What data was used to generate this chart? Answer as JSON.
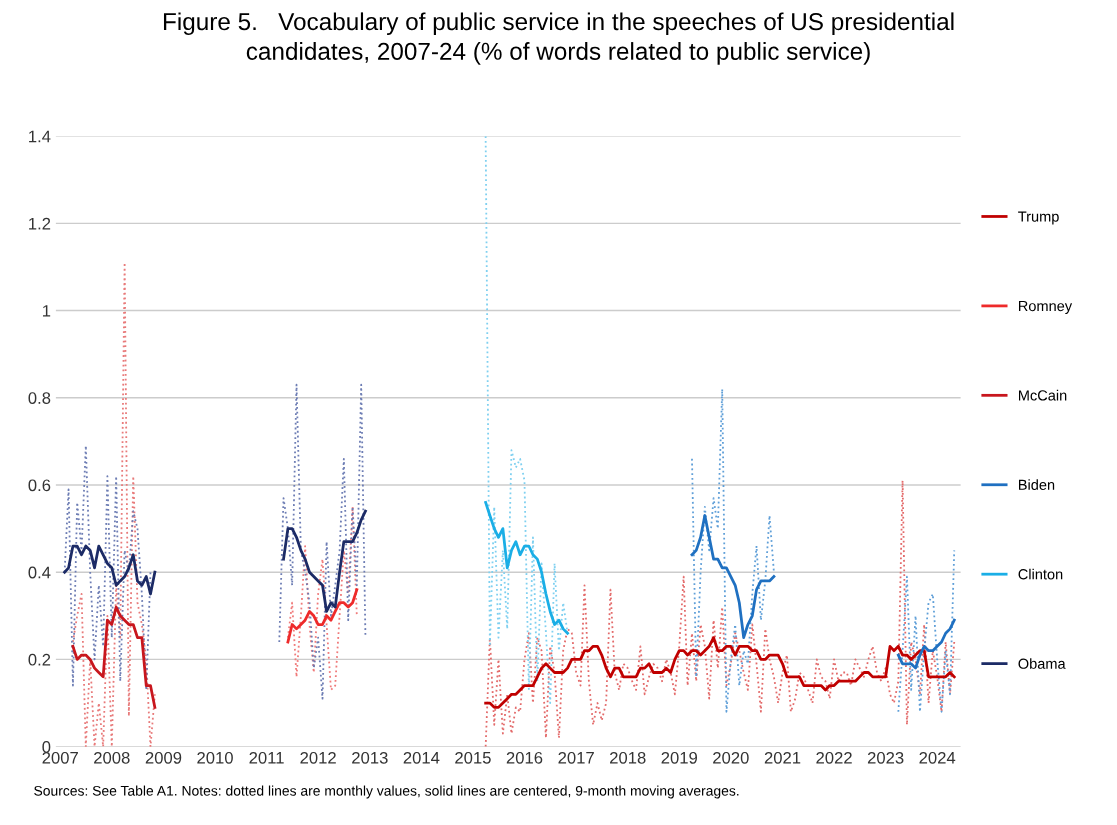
{
  "chart_data": {
    "type": "line",
    "title": "Figure 5.   Vocabulary of public service in the speeches of US presidential\ncandidates, 2007-24 (% of words related to public service)",
    "annotations": [
      "Sources: See Table A1. Notes: dotted lines are monthly values, solid lines are centered, 9-month moving averages."
    ],
    "xlim": [
      "2006-12-01",
      "2024-06-15"
    ],
    "xticks": [
      "2007",
      "2008",
      "2009",
      "2010",
      "2011",
      "2012",
      "2013",
      "2014",
      "2015",
      "2016",
      "2017",
      "2018",
      "2019",
      "2020",
      "2021",
      "2022",
      "2023",
      "2024"
    ],
    "ylim": [
      0,
      1.4
    ],
    "yticks": [
      0,
      0.2,
      0.4,
      0.6,
      0.8,
      1,
      1.2,
      1.4
    ],
    "grid": "y",
    "legend": "right",
    "series": [
      {
        "name": "Trump",
        "color": "#c00000",
        "line_style": "solid",
        "x": [
          "2015-04",
          "2015-05",
          "2015-06",
          "2015-07",
          "2015-08",
          "2015-09",
          "2015-10",
          "2015-11",
          "2015-12",
          "2016-01",
          "2016-02",
          "2016-03",
          "2016-04",
          "2016-05",
          "2016-06",
          "2016-07",
          "2016-08",
          "2016-09",
          "2016-10",
          "2016-11",
          "2016-12",
          "2017-01",
          "2017-02",
          "2017-03",
          "2017-04",
          "2017-05",
          "2017-06",
          "2017-07",
          "2017-08",
          "2017-09",
          "2017-10",
          "2017-11",
          "2017-12",
          "2018-01",
          "2018-02",
          "2018-03",
          "2018-04",
          "2018-05",
          "2018-06",
          "2018-07",
          "2018-08",
          "2018-09",
          "2018-10",
          "2018-11",
          "2018-12",
          "2019-01",
          "2019-02",
          "2019-03",
          "2019-04",
          "2019-05",
          "2019-06",
          "2019-07",
          "2019-08",
          "2019-09",
          "2019-10",
          "2019-11",
          "2019-12",
          "2020-01",
          "2020-02",
          "2020-03",
          "2020-04",
          "2020-05",
          "2020-06",
          "2020-07",
          "2020-08",
          "2020-09",
          "2020-10",
          "2020-11",
          "2020-12",
          "2021-01",
          "2021-02",
          "2021-03",
          "2021-04",
          "2021-05",
          "2021-06",
          "2021-07",
          "2021-08",
          "2021-09",
          "2021-10",
          "2021-11",
          "2021-12",
          "2022-01",
          "2022-02",
          "2022-03",
          "2022-04",
          "2022-05",
          "2022-06",
          "2022-07",
          "2022-08",
          "2022-09",
          "2022-10",
          "2022-11",
          "2022-12",
          "2023-01",
          "2023-02",
          "2023-03",
          "2023-04",
          "2023-05",
          "2023-06",
          "2023-07",
          "2023-08",
          "2023-09",
          "2023-10",
          "2023-11",
          "2023-12",
          "2024-01",
          "2024-02",
          "2024-03",
          "2024-04",
          "2024-05"
        ],
        "values": [
          0.1,
          0.1,
          0.09,
          0.09,
          0.1,
          0.11,
          0.12,
          0.12,
          0.13,
          0.14,
          0.14,
          0.14,
          0.16,
          0.18,
          0.19,
          0.18,
          0.17,
          0.17,
          0.17,
          0.18,
          0.2,
          0.2,
          0.2,
          0.22,
          0.22,
          0.23,
          0.23,
          0.21,
          0.18,
          0.16,
          0.18,
          0.18,
          0.16,
          0.16,
          0.16,
          0.16,
          0.18,
          0.18,
          0.19,
          0.17,
          0.17,
          0.17,
          0.18,
          0.17,
          0.2,
          0.22,
          0.22,
          0.21,
          0.22,
          0.22,
          0.21,
          0.22,
          0.23,
          0.25,
          0.22,
          0.22,
          0.23,
          0.23,
          0.21,
          0.23,
          0.23,
          0.23,
          0.22,
          0.22,
          0.2,
          0.2,
          0.21,
          0.21,
          0.21,
          0.19,
          0.16,
          0.16,
          0.16,
          0.16,
          0.14,
          0.14,
          0.14,
          0.14,
          0.14,
          0.13,
          0.14,
          0.14,
          0.15,
          0.15,
          0.15,
          0.15,
          0.15,
          0.16,
          0.17,
          0.17,
          0.16,
          0.16,
          0.16,
          0.16,
          0.23,
          0.22,
          0.23,
          0.21,
          0.21,
          0.2,
          0.21,
          0.22,
          0.22,
          0.16,
          0.16,
          0.16,
          0.16,
          0.16,
          0.17,
          0.16
        ]
      },
      {
        "name": "Romney",
        "color": "#ee2a2a",
        "line_style": "solid",
        "x": [
          "2011-06",
          "2011-07",
          "2011-08",
          "2011-09",
          "2011-10",
          "2011-11",
          "2011-12",
          "2012-01",
          "2012-02",
          "2012-03",
          "2012-04",
          "2012-05",
          "2012-06",
          "2012-07",
          "2012-08",
          "2012-09",
          "2012-10"
        ],
        "values": [
          0.24,
          0.28,
          0.27,
          0.28,
          0.29,
          0.31,
          0.3,
          0.28,
          0.28,
          0.3,
          0.29,
          0.31,
          0.33,
          0.33,
          0.32,
          0.33,
          0.36
        ]
      },
      {
        "name": "McCain",
        "color": "#c8161d",
        "line_style": "solid",
        "x": [
          "2007-04",
          "2007-05",
          "2007-06",
          "2007-07",
          "2007-08",
          "2007-09",
          "2007-10",
          "2007-11",
          "2007-12",
          "2008-01",
          "2008-02",
          "2008-03",
          "2008-04",
          "2008-05",
          "2008-06",
          "2008-07",
          "2008-08",
          "2008-09",
          "2008-10",
          "2008-11"
        ],
        "values": [
          0.23,
          0.2,
          0.21,
          0.21,
          0.2,
          0.18,
          0.17,
          0.16,
          0.29,
          0.28,
          0.32,
          0.3,
          0.29,
          0.28,
          0.28,
          0.25,
          0.25,
          0.14,
          0.14,
          0.09
        ]
      },
      {
        "name": "Biden",
        "color": "#1f70c1",
        "line_style": "solid",
        "x": [
          "2019-04",
          "2019-05",
          "2019-06",
          "2019-07",
          "2019-08",
          "2019-09",
          "2019-10",
          "2019-11",
          "2019-12",
          "2020-01",
          "2020-02",
          "2020-03",
          "2020-04",
          "2020-05",
          "2020-06",
          "2020-07",
          "2020-08",
          "2020-09",
          "2020-10",
          "2020-11"
        ],
        "values": [
          0.44,
          0.45,
          0.48,
          0.53,
          0.48,
          0.43,
          0.43,
          0.41,
          0.41,
          0.39,
          0.37,
          0.33,
          0.25,
          0.28,
          0.3,
          0.36,
          0.38,
          0.38,
          0.38,
          0.39
        ]
      },
      {
        "color": "#1f70c1",
        "line_style": "solid",
        "x": [
          "2023-04",
          "2023-05",
          "2023-06",
          "2023-07",
          "2023-08",
          "2023-09",
          "2023-10",
          "2023-11",
          "2023-12",
          "2024-01",
          "2024-02",
          "2024-03",
          "2024-04",
          "2024-05"
        ],
        "values": [
          0.21,
          0.19,
          0.19,
          0.19,
          0.18,
          0.21,
          0.23,
          0.22,
          0.22,
          0.23,
          0.24,
          0.26,
          0.27,
          0.29
        ]
      },
      {
        "name": "Clinton",
        "color": "#1aaee6",
        "line_style": "solid",
        "x": [
          "2015-04",
          "2015-05",
          "2015-06",
          "2015-07",
          "2015-08",
          "2015-09",
          "2015-10",
          "2015-11",
          "2015-12",
          "2016-01",
          "2016-02",
          "2016-03",
          "2016-04",
          "2016-05",
          "2016-06",
          "2016-07",
          "2016-08",
          "2016-09",
          "2016-10",
          "2016-11"
        ],
        "values": [
          0.56,
          0.53,
          0.5,
          0.48,
          0.5,
          0.41,
          0.45,
          0.47,
          0.44,
          0.46,
          0.46,
          0.44,
          0.43,
          0.4,
          0.35,
          0.31,
          0.28,
          0.29,
          0.27,
          0.26
        ]
      },
      {
        "name": "Obama",
        "color": "#1c2b66",
        "line_style": "solid",
        "x": [
          "2007-02",
          "2007-03",
          "2007-04",
          "2007-05",
          "2007-06",
          "2007-07",
          "2007-08",
          "2007-09",
          "2007-10",
          "2007-11",
          "2007-12",
          "2008-01",
          "2008-02",
          "2008-03",
          "2008-04",
          "2008-05",
          "2008-06",
          "2008-07",
          "2008-08",
          "2008-09",
          "2008-10",
          "2008-11"
        ],
        "values": [
          0.4,
          0.41,
          0.46,
          0.46,
          0.44,
          0.46,
          0.45,
          0.41,
          0.46,
          0.44,
          0.42,
          0.41,
          0.37,
          0.38,
          0.39,
          0.41,
          0.44,
          0.38,
          0.37,
          0.39,
          0.35,
          0.4
        ]
      },
      {
        "color": "#1c2b66",
        "line_style": "solid",
        "x": [
          "2011-05",
          "2011-06",
          "2011-07",
          "2011-08",
          "2011-09",
          "2011-10",
          "2011-11",
          "2011-12",
          "2012-01",
          "2012-02",
          "2012-03",
          "2012-04",
          "2012-05",
          "2012-06",
          "2012-07",
          "2012-08",
          "2012-09",
          "2012-10",
          "2012-11",
          "2012-12"
        ],
        "values": [
          0.43,
          0.5,
          0.5,
          0.48,
          0.45,
          0.43,
          0.4,
          0.39,
          0.38,
          0.37,
          0.31,
          0.33,
          0.32,
          0.4,
          0.47,
          0.47,
          0.47,
          0.49,
          0.52,
          0.54
        ]
      },
      {
        "color": "#e36a6a",
        "line_style": "dotted",
        "x": [
          "2015-04",
          "2015-05",
          "2015-06",
          "2015-07",
          "2015-08",
          "2015-09",
          "2015-10",
          "2015-11",
          "2015-12",
          "2016-01",
          "2016-02",
          "2016-03",
          "2016-04",
          "2016-05",
          "2016-06",
          "2016-07",
          "2016-08",
          "2016-09",
          "2016-10",
          "2016-11",
          "2016-12",
          "2017-01",
          "2017-02",
          "2017-03",
          "2017-04",
          "2017-05",
          "2017-06",
          "2017-07",
          "2017-08",
          "2017-09",
          "2017-10",
          "2017-11",
          "2017-12",
          "2018-01",
          "2018-02",
          "2018-03",
          "2018-04",
          "2018-05",
          "2018-06",
          "2018-07",
          "2018-08",
          "2018-09",
          "2018-10",
          "2018-11",
          "2018-12",
          "2019-01",
          "2019-02",
          "2019-03",
          "2019-04",
          "2019-05",
          "2019-06",
          "2019-07",
          "2019-08",
          "2019-09",
          "2019-10",
          "2019-11",
          "2019-12",
          "2020-01",
          "2020-02",
          "2020-03",
          "2020-04",
          "2020-05",
          "2020-06",
          "2020-07",
          "2020-08",
          "2020-09",
          "2020-10",
          "2020-11",
          "2020-12",
          "2021-01",
          "2021-02",
          "2021-03",
          "2021-04",
          "2021-05",
          "2021-06",
          "2021-07",
          "2021-08",
          "2021-09",
          "2021-10",
          "2021-11",
          "2021-12",
          "2022-01",
          "2022-02",
          "2022-03",
          "2022-04",
          "2022-05",
          "2022-06",
          "2022-07",
          "2022-08",
          "2022-09",
          "2022-10",
          "2022-11",
          "2022-12",
          "2023-01",
          "2023-02",
          "2023-03",
          "2023-04",
          "2023-05",
          "2023-06",
          "2023-07",
          "2023-08",
          "2023-09",
          "2023-10",
          "2023-11",
          "2023-12",
          "2024-01",
          "2024-02",
          "2024-03",
          "2024-04",
          "2024-05"
        ],
        "values": [
          0.0,
          0.25,
          0.05,
          0.2,
          0.03,
          0.12,
          0.03,
          0.09,
          0.08,
          0.2,
          0.26,
          0.1,
          0.25,
          0.22,
          0.02,
          0.23,
          0.17,
          0.02,
          0.22,
          0.27,
          0.26,
          0.17,
          0.14,
          0.37,
          0.15,
          0.05,
          0.1,
          0.06,
          0.1,
          0.36,
          0.17,
          0.13,
          0.19,
          0.18,
          0.15,
          0.13,
          0.23,
          0.12,
          0.16,
          0.19,
          0.18,
          0.15,
          0.2,
          0.17,
          0.12,
          0.23,
          0.39,
          0.14,
          0.26,
          0.15,
          0.28,
          0.23,
          0.11,
          0.29,
          0.18,
          0.32,
          0.14,
          0.19,
          0.26,
          0.22,
          0.17,
          0.13,
          0.28,
          0.19,
          0.08,
          0.27,
          0.2,
          0.16,
          0.1,
          0.17,
          0.21,
          0.08,
          0.11,
          0.17,
          0.16,
          0.13,
          0.1,
          0.2,
          0.16,
          0.15,
          0.11,
          0.2,
          0.15,
          0.17,
          0.17,
          0.14,
          0.2,
          0.18,
          0.16,
          0.2,
          0.23,
          0.17,
          0.15,
          0.18,
          0.12,
          0.1,
          0.15,
          0.61,
          0.05,
          0.24,
          0.2,
          0.12,
          0.28,
          0.1,
          0.22,
          0.16,
          0.08,
          0.24,
          0.12,
          0.24
        ]
      },
      {
        "color": "#f07a7a",
        "line_style": "dotted",
        "x": [
          "2011-06",
          "2011-07",
          "2011-08",
          "2011-09",
          "2011-10",
          "2011-11",
          "2011-12",
          "2012-01",
          "2012-02",
          "2012-03",
          "2012-04",
          "2012-05",
          "2012-06",
          "2012-07",
          "2012-08",
          "2012-09",
          "2012-10"
        ],
        "values": [
          0.25,
          0.33,
          0.16,
          0.3,
          0.46,
          0.28,
          0.17,
          0.35,
          0.43,
          0.28,
          0.13,
          0.14,
          0.3,
          0.45,
          0.35,
          0.55,
          0.3
        ]
      },
      {
        "color": "#e87a7a",
        "line_style": "dotted",
        "x": [
          "2007-04",
          "2007-05",
          "2007-06",
          "2007-07",
          "2007-08",
          "2007-09",
          "2007-10",
          "2007-11",
          "2007-12",
          "2008-01",
          "2008-02",
          "2008-03",
          "2008-04",
          "2008-05",
          "2008-06",
          "2008-07",
          "2008-08",
          "2008-09",
          "2008-10",
          "2008-11"
        ],
        "values": [
          0.24,
          0.3,
          0.35,
          0.0,
          0.2,
          0.0,
          0.1,
          0.0,
          0.3,
          0.0,
          0.37,
          0.25,
          1.11,
          0.07,
          0.62,
          0.33,
          0.28,
          0.2,
          0.0,
          0.12
        ]
      },
      {
        "color": "#5f9fd8",
        "line_style": "dotted",
        "x": [
          "2019-04",
          "2019-05",
          "2019-06",
          "2019-07",
          "2019-08",
          "2019-09",
          "2019-10",
          "2019-11",
          "2019-12",
          "2020-01",
          "2020-02",
          "2020-03",
          "2020-04",
          "2020-05",
          "2020-06",
          "2020-07",
          "2020-08",
          "2020-09",
          "2020-10",
          "2020-11"
        ],
        "values": [
          0.66,
          0.16,
          0.4,
          0.55,
          0.45,
          0.57,
          0.5,
          0.82,
          0.08,
          0.2,
          0.28,
          0.14,
          0.22,
          0.19,
          0.35,
          0.46,
          0.29,
          0.38,
          0.53,
          0.4
        ]
      },
      {
        "color": "#5f9fd8",
        "line_style": "dotted",
        "x": [
          "2023-04",
          "2023-05",
          "2023-06",
          "2023-07",
          "2023-08",
          "2023-09",
          "2023-10",
          "2023-11",
          "2023-12",
          "2024-01",
          "2024-02",
          "2024-03",
          "2024-04",
          "2024-05"
        ],
        "values": [
          0.08,
          0.22,
          0.39,
          0.13,
          0.3,
          0.08,
          0.22,
          0.33,
          0.35,
          0.2,
          0.08,
          0.22,
          0.12,
          0.45
        ]
      },
      {
        "color": "#7fd0f0",
        "line_style": "dotted",
        "x": [
          "2015-04",
          "2015-05",
          "2015-06",
          "2015-07",
          "2015-08",
          "2015-09",
          "2015-10",
          "2015-11",
          "2015-12",
          "2016-01",
          "2016-02",
          "2016-03",
          "2016-04",
          "2016-05",
          "2016-06",
          "2016-07",
          "2016-08",
          "2016-09",
          "2016-10",
          "2016-11"
        ],
        "values": [
          1.4,
          0.23,
          0.55,
          0.25,
          0.45,
          0.27,
          0.68,
          0.64,
          0.66,
          0.61,
          0.13,
          0.48,
          0.15,
          0.42,
          0.26,
          0.1,
          0.42,
          0.22,
          0.33,
          0.26
        ]
      },
      {
        "color": "#6d7db4",
        "line_style": "dotted",
        "x": [
          "2007-02",
          "2007-03",
          "2007-04",
          "2007-05",
          "2007-06",
          "2007-07",
          "2007-08",
          "2007-09",
          "2007-10",
          "2007-11",
          "2007-12",
          "2008-01",
          "2008-02",
          "2008-03",
          "2008-04",
          "2008-05",
          "2008-06",
          "2008-07",
          "2008-08",
          "2008-09",
          "2008-10"
        ],
        "values": [
          0.4,
          0.59,
          0.14,
          0.56,
          0.45,
          0.69,
          0.4,
          0.2,
          0.37,
          0.23,
          0.62,
          0.25,
          0.62,
          0.15,
          0.45,
          0.4,
          0.54,
          0.5,
          0.35,
          0.13,
          0.4
        ]
      },
      {
        "color": "#6d7db4",
        "line_style": "dotted",
        "x": [
          "2011-04",
          "2011-05",
          "2011-06",
          "2011-07",
          "2011-08",
          "2011-09",
          "2011-10",
          "2011-11",
          "2011-12",
          "2012-01",
          "2012-02",
          "2012-03",
          "2012-04",
          "2012-05",
          "2012-06",
          "2012-07",
          "2012-08",
          "2012-09",
          "2012-10",
          "2012-11",
          "2012-12"
        ],
        "values": [
          0.24,
          0.57,
          0.5,
          0.37,
          0.83,
          0.45,
          0.4,
          0.33,
          0.18,
          0.25,
          0.11,
          0.47,
          0.3,
          0.37,
          0.45,
          0.66,
          0.29,
          0.55,
          0.37,
          0.83,
          0.25
        ]
      }
    ]
  }
}
